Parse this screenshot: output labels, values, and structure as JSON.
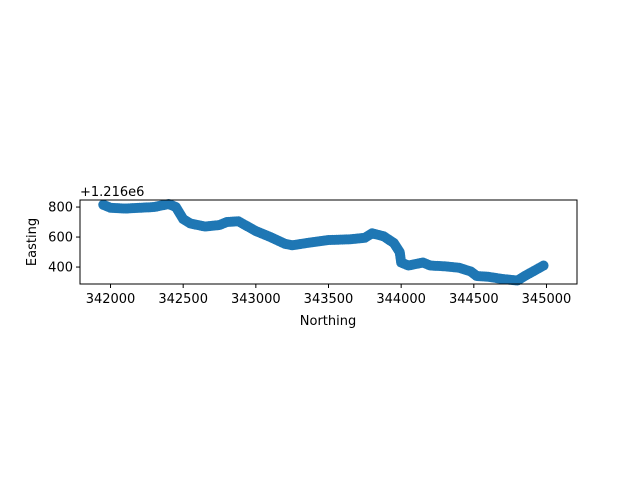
{
  "chart_data": {
    "type": "scatter",
    "title": "",
    "xlabel": "Northing",
    "ylabel": "Easting",
    "y_offset_text": "+1.216e6",
    "xlim": [
      341790,
      345210
    ],
    "ylim": [
      287,
      847
    ],
    "xticks": [
      342000,
      342500,
      343000,
      343500,
      344000,
      344500,
      345000
    ],
    "yticks": [
      400,
      600,
      800
    ],
    "grid": false,
    "color": "#1f77b4",
    "points": [
      [
        341950,
        815
      ],
      [
        342000,
        795
      ],
      [
        342100,
        790
      ],
      [
        342200,
        795
      ],
      [
        342300,
        800
      ],
      [
        342400,
        820
      ],
      [
        342450,
        800
      ],
      [
        342500,
        720
      ],
      [
        342550,
        690
      ],
      [
        342650,
        670
      ],
      [
        342750,
        680
      ],
      [
        342800,
        700
      ],
      [
        342880,
        705
      ],
      [
        343000,
        640
      ],
      [
        343100,
        600
      ],
      [
        343200,
        555
      ],
      [
        343250,
        545
      ],
      [
        343350,
        560
      ],
      [
        343500,
        580
      ],
      [
        343650,
        585
      ],
      [
        343750,
        595
      ],
      [
        343800,
        625
      ],
      [
        343880,
        605
      ],
      [
        343950,
        560
      ],
      [
        343990,
        500
      ],
      [
        344000,
        430
      ],
      [
        344050,
        410
      ],
      [
        344150,
        430
      ],
      [
        344200,
        410
      ],
      [
        344300,
        405
      ],
      [
        344400,
        395
      ],
      [
        344480,
        370
      ],
      [
        344520,
        340
      ],
      [
        344600,
        335
      ],
      [
        344700,
        320
      ],
      [
        344800,
        310
      ],
      [
        344850,
        340
      ],
      [
        344980,
        410
      ]
    ]
  }
}
